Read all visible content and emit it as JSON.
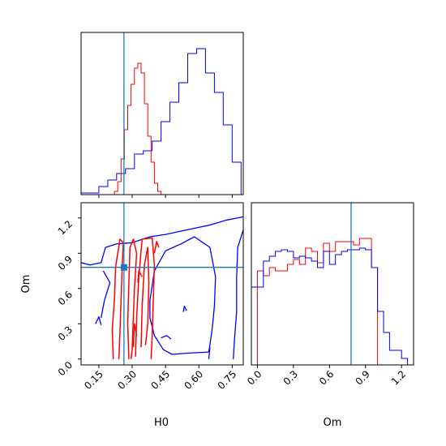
{
  "chart_data": {
    "type": "corner",
    "parameters": [
      "H0",
      "Om"
    ],
    "truth": {
      "H0": 0.263,
      "Om": 0.78
    },
    "colors": {
      "red": "#ff0000",
      "blue": "#0000ff",
      "truth": "#1f77b4"
    },
    "H0_marginal": {
      "xlim": [
        0.07,
        0.8
      ],
      "red": {
        "edges": [
          0.22,
          0.235,
          0.25,
          0.265,
          0.28,
          0.295,
          0.31,
          0.325,
          0.34,
          0.355,
          0.37,
          0.385,
          0.4,
          0.415,
          0.43
        ],
        "heights": [
          0.02,
          0.08,
          0.22,
          0.4,
          0.55,
          0.68,
          0.78,
          0.81,
          0.75,
          0.56,
          0.36,
          0.2,
          0.07,
          0.02
        ]
      },
      "blue": {
        "edges": [
          0.07,
          0.11,
          0.15,
          0.19,
          0.23,
          0.27,
          0.31,
          0.35,
          0.39,
          0.43,
          0.47,
          0.51,
          0.55,
          0.59,
          0.63,
          0.67,
          0.71,
          0.75,
          0.79
        ],
        "heights": [
          0.01,
          0.01,
          0.05,
          0.09,
          0.13,
          0.16,
          0.25,
          0.27,
          0.33,
          0.45,
          0.57,
          0.69,
          0.87,
          0.9,
          0.75,
          0.63,
          0.43,
          0.2
        ]
      },
      "ticks": [
        0.15,
        0.3,
        0.45,
        0.6,
        0.75
      ]
    },
    "Om_marginal": {
      "xlim": [
        -0.05,
        1.3
      ],
      "red": {
        "edges": [
          0.0,
          0.05,
          0.1,
          0.15,
          0.2,
          0.25,
          0.3,
          0.35,
          0.4,
          0.45,
          0.5,
          0.55,
          0.6,
          0.65,
          0.7,
          0.75,
          0.8,
          0.85,
          0.9,
          0.95,
          1.0
        ],
        "heights": [
          0.58,
          0.55,
          0.6,
          0.58,
          0.58,
          0.62,
          0.65,
          0.62,
          0.72,
          0.7,
          0.63,
          0.75,
          0.7,
          0.76,
          0.76,
          0.76,
          0.74,
          0.78,
          0.78,
          0.6
        ]
      },
      "blue": {
        "edges": [
          -0.05,
          0.05,
          0.1,
          0.15,
          0.2,
          0.25,
          0.3,
          0.35,
          0.4,
          0.45,
          0.5,
          0.55,
          0.6,
          0.65,
          0.7,
          0.75,
          0.8,
          0.85,
          0.9,
          0.95,
          1.0,
          1.05,
          1.1,
          1.15,
          1.2,
          1.25
        ],
        "heights": [
          0.48,
          0.64,
          0.67,
          0.7,
          0.71,
          0.7,
          0.66,
          0.67,
          0.66,
          0.64,
          0.6,
          0.7,
          0.62,
          0.68,
          0.7,
          0.71,
          0.71,
          0.72,
          0.71,
          0.6,
          0.33,
          0.2,
          0.09,
          0.09,
          0.04
        ]
      },
      "ticks": [
        0.0,
        0.3,
        0.6,
        0.9,
        1.2
      ]
    },
    "joint": {
      "xlim": [
        0.07,
        0.8
      ],
      "ylim": [
        -0.05,
        1.33
      ],
      "xticks": [
        0.15,
        0.3,
        0.45,
        0.6,
        0.75
      ],
      "yticks": [
        0.0,
        0.3,
        0.6,
        0.9,
        1.2
      ],
      "red_contours": [
        [
          [
            0.215,
            0.0
          ],
          [
            0.21,
            0.25
          ],
          [
            0.22,
            0.5
          ],
          [
            0.225,
            0.78
          ],
          [
            0.245,
            1.02
          ],
          [
            0.26,
            0.99
          ],
          [
            0.255,
            0.78
          ],
          [
            0.25,
            0.5
          ],
          [
            0.245,
            0.22
          ],
          [
            0.24,
            0.0
          ]
        ],
        [
          [
            0.285,
            0.0
          ],
          [
            0.28,
            0.3
          ],
          [
            0.285,
            0.65
          ],
          [
            0.29,
            0.95
          ],
          [
            0.305,
            1.02
          ],
          [
            0.32,
            0.9
          ],
          [
            0.31,
            0.6
          ],
          [
            0.305,
            0.35
          ],
          [
            0.3,
            0.08
          ],
          [
            0.295,
            0.0
          ]
        ],
        [
          [
            0.315,
            0.02
          ],
          [
            0.32,
            0.35
          ],
          [
            0.33,
            0.7
          ],
          [
            0.345,
            1.02
          ],
          [
            0.39,
            1.03
          ],
          [
            0.4,
            0.8
          ],
          [
            0.395,
            0.5
          ],
          [
            0.39,
            0.2
          ],
          [
            0.385,
            0.0
          ]
        ],
        [
          [
            0.34,
            0.1
          ],
          [
            0.345,
            0.45
          ],
          [
            0.355,
            0.8
          ],
          [
            0.37,
            0.95
          ],
          [
            0.375,
            0.65
          ],
          [
            0.37,
            0.3
          ],
          [
            0.36,
            0.12
          ]
        ],
        [
          [
            0.305,
            0.1
          ],
          [
            0.31,
            0.3
          ],
          [
            0.32,
            0.2
          ]
        ],
        [
          [
            0.325,
            0.65
          ],
          [
            0.33,
            0.75
          ],
          [
            0.345,
            0.7
          ]
        ],
        [
          [
            0.4,
            0.9
          ],
          [
            0.41,
            1.0
          ],
          [
            0.42,
            0.95
          ]
        ]
      ],
      "blue_contours": [
        [
          [
            0.07,
            0.82
          ],
          [
            0.11,
            0.8
          ],
          [
            0.16,
            0.82
          ],
          [
            0.18,
            0.95
          ],
          [
            0.23,
            0.98
          ],
          [
            0.3,
            0.99
          ],
          [
            0.38,
            1.04
          ],
          [
            0.45,
            1.06
          ],
          [
            0.55,
            1.1
          ],
          [
            0.65,
            1.14
          ],
          [
            0.72,
            1.18
          ],
          [
            0.8,
            1.21
          ]
        ],
        [
          [
            0.8,
            1.1
          ],
          [
            0.775,
            0.95
          ],
          [
            0.77,
            0.7
          ],
          [
            0.77,
            0.4
          ],
          [
            0.76,
            0.15
          ],
          [
            0.755,
            0.0
          ]
        ],
        [
          [
            0.38,
            0.5
          ],
          [
            0.4,
            0.75
          ],
          [
            0.45,
            0.92
          ],
          [
            0.52,
            0.98
          ],
          [
            0.58,
            1.04
          ],
          [
            0.65,
            0.95
          ],
          [
            0.675,
            0.7
          ],
          [
            0.67,
            0.45
          ],
          [
            0.66,
            0.25
          ],
          [
            0.645,
            0.06
          ],
          [
            0.55,
            0.05
          ],
          [
            0.48,
            0.04
          ],
          [
            0.44,
            0.08
          ],
          [
            0.4,
            0.2
          ],
          [
            0.38,
            0.35
          ],
          [
            0.38,
            0.5
          ]
        ],
        [
          [
            0.645,
            0.0
          ],
          [
            0.65,
            0.1
          ]
        ],
        [
          [
            0.16,
            0.35
          ],
          [
            0.175,
            0.5
          ],
          [
            0.2,
            0.65
          ],
          [
            0.17,
            0.75
          ]
        ],
        [
          [
            0.135,
            0.3
          ],
          [
            0.15,
            0.36
          ],
          [
            0.16,
            0.29
          ]
        ],
        [
          [
            0.43,
            0.18
          ],
          [
            0.455,
            0.2
          ],
          [
            0.475,
            0.17
          ]
        ],
        [
          [
            0.53,
            0.4
          ],
          [
            0.535,
            0.45
          ],
          [
            0.545,
            0.41
          ]
        ]
      ]
    }
  },
  "labels": {
    "xlabel_H0": "H0",
    "ylabel_Om": "Om",
    "xlabel_Om": "Om"
  }
}
